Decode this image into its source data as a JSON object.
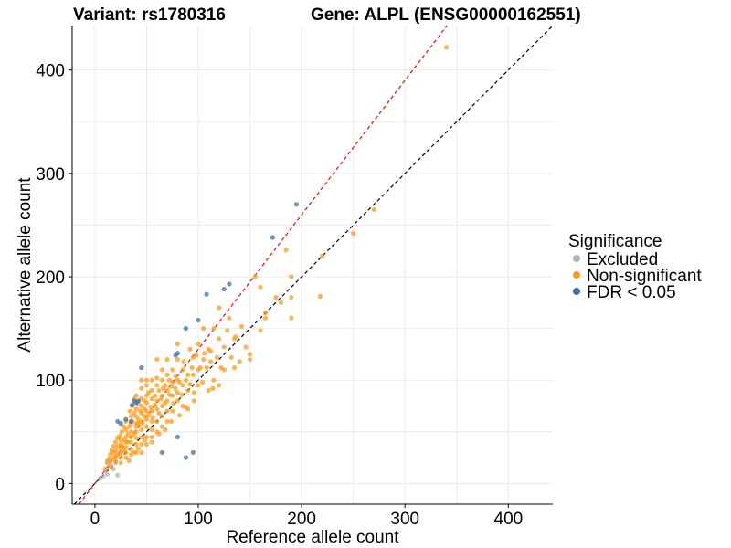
{
  "chart_data": {
    "type": "scatter",
    "title_left": "Variant: rs1780316",
    "title_right": "Gene: ALPL (ENSG00000162551)",
    "xlabel": "Reference allele count",
    "ylabel": "Alternative allele count",
    "xlim": [
      -22,
      443
    ],
    "ylim": [
      -20,
      443
    ],
    "x_ticks": [
      0,
      100,
      200,
      300,
      400
    ],
    "y_ticks": [
      0,
      100,
      200,
      300,
      400
    ],
    "grid": true,
    "legend": {
      "title": "Significance",
      "position": "right",
      "entries": [
        {
          "key": "excluded",
          "label": "Excluded",
          "color": "#b3b3b3"
        },
        {
          "key": "nonsig",
          "label": "Non-significant",
          "color": "#ff9a14"
        },
        {
          "key": "fdr",
          "label": "FDR < 0.05",
          "color": "#3d6fa8"
        }
      ]
    },
    "reference_lines": [
      {
        "name": "identity",
        "slope": 1.0,
        "intercept": 0,
        "color": "#000000",
        "style": "dashed"
      },
      {
        "name": "fitted",
        "slope": 1.3,
        "intercept": 0,
        "color": "#ff0000",
        "style": "dashed"
      }
    ],
    "series": [
      {
        "name": "Excluded",
        "points": [
          [
            5,
            5
          ],
          [
            8,
            7
          ],
          [
            10,
            12
          ],
          [
            12,
            9
          ],
          [
            15,
            18
          ],
          [
            18,
            14
          ],
          [
            20,
            20
          ],
          [
            22,
            8
          ],
          [
            12,
            22
          ],
          [
            25,
            28
          ]
        ]
      },
      {
        "name": "Non-significant",
        "points": [
          [
            340,
            422
          ],
          [
            270,
            265
          ],
          [
            250,
            242
          ],
          [
            220,
            220
          ],
          [
            218,
            181
          ],
          [
            185,
            226
          ],
          [
            190,
            160
          ],
          [
            190,
            180
          ],
          [
            190,
            200
          ],
          [
            175,
            180
          ],
          [
            165,
            165
          ],
          [
            165,
            160
          ],
          [
            155,
            200
          ],
          [
            160,
            148
          ],
          [
            150,
            120
          ],
          [
            150,
            125
          ],
          [
            140,
            118
          ],
          [
            130,
            160
          ],
          [
            135,
            140
          ],
          [
            125,
            132
          ],
          [
            120,
            140
          ],
          [
            120,
            170
          ],
          [
            125,
            110
          ],
          [
            110,
            130
          ],
          [
            112,
            118
          ],
          [
            115,
            100
          ],
          [
            105,
            120
          ],
          [
            100,
            110
          ],
          [
            100,
            95
          ],
          [
            100,
            135
          ],
          [
            95,
            122
          ],
          [
            95,
            105
          ],
          [
            92,
            130
          ],
          [
            90,
            105
          ],
          [
            90,
            90
          ],
          [
            90,
            72
          ],
          [
            85,
            110
          ],
          [
            85,
            95
          ],
          [
            85,
            75
          ],
          [
            80,
            120
          ],
          [
            80,
            100
          ],
          [
            80,
            88
          ],
          [
            80,
            80
          ],
          [
            78,
            92
          ],
          [
            75,
            110
          ],
          [
            75,
            98
          ],
          [
            75,
            85
          ],
          [
            75,
            70
          ],
          [
            72,
            100
          ],
          [
            70,
            105
          ],
          [
            70,
            90
          ],
          [
            70,
            80
          ],
          [
            70,
            70
          ],
          [
            70,
            60
          ],
          [
            68,
            95
          ],
          [
            65,
            110
          ],
          [
            65,
            100
          ],
          [
            65,
            85
          ],
          [
            65,
            75
          ],
          [
            65,
            65
          ],
          [
            65,
            55
          ],
          [
            62,
            90
          ],
          [
            60,
            102
          ],
          [
            60,
            95
          ],
          [
            60,
            80
          ],
          [
            60,
            72
          ],
          [
            60,
            60
          ],
          [
            60,
            50
          ],
          [
            58,
            85
          ],
          [
            55,
            100
          ],
          [
            55,
            90
          ],
          [
            55,
            82
          ],
          [
            55,
            70
          ],
          [
            55,
            60
          ],
          [
            55,
            52
          ],
          [
            55,
            45
          ],
          [
            52,
            88
          ],
          [
            50,
            95
          ],
          [
            50,
            85
          ],
          [
            50,
            78
          ],
          [
            50,
            70
          ],
          [
            50,
            62
          ],
          [
            50,
            55
          ],
          [
            50,
            45
          ],
          [
            50,
            38
          ],
          [
            48,
            80
          ],
          [
            48,
            65
          ],
          [
            45,
            92
          ],
          [
            45,
            82
          ],
          [
            45,
            75
          ],
          [
            45,
            68
          ],
          [
            45,
            60
          ],
          [
            45,
            52
          ],
          [
            45,
            45
          ],
          [
            45,
            38
          ],
          [
            45,
            30
          ],
          [
            42,
            78
          ],
          [
            42,
            58
          ],
          [
            40,
            85
          ],
          [
            40,
            72
          ],
          [
            40,
            65
          ],
          [
            40,
            58
          ],
          [
            40,
            50
          ],
          [
            40,
            44
          ],
          [
            40,
            38
          ],
          [
            40,
            30
          ],
          [
            38,
            68
          ],
          [
            38,
            48
          ],
          [
            36,
            75
          ],
          [
            35,
            65
          ],
          [
            35,
            58
          ],
          [
            35,
            50
          ],
          [
            35,
            45
          ],
          [
            35,
            40
          ],
          [
            35,
            33
          ],
          [
            35,
            28
          ],
          [
            33,
            55
          ],
          [
            32,
            48
          ],
          [
            30,
            60
          ],
          [
            30,
            52
          ],
          [
            30,
            45
          ],
          [
            30,
            40
          ],
          [
            30,
            35
          ],
          [
            30,
            30
          ],
          [
            30,
            25
          ],
          [
            28,
            42
          ],
          [
            28,
            32
          ],
          [
            26,
            50
          ],
          [
            25,
            42
          ],
          [
            25,
            38
          ],
          [
            25,
            34
          ],
          [
            25,
            30
          ],
          [
            25,
            25
          ],
          [
            25,
            20
          ],
          [
            22,
            36
          ],
          [
            22,
            28
          ],
          [
            20,
            40
          ],
          [
            20,
            32
          ],
          [
            20,
            26
          ],
          [
            20,
            22
          ],
          [
            18,
            30
          ],
          [
            18,
            24
          ],
          [
            15,
            28
          ],
          [
            15,
            22
          ],
          [
            15,
            16
          ],
          [
            12,
            20
          ],
          [
            10,
            14
          ],
          [
            40,
            55
          ],
          [
            42,
            62
          ],
          [
            44,
            70
          ],
          [
            46,
            58
          ],
          [
            48,
            72
          ],
          [
            52,
            66
          ],
          [
            54,
            74
          ],
          [
            56,
            64
          ],
          [
            58,
            76
          ],
          [
            62,
            68
          ],
          [
            64,
            82
          ],
          [
            66,
            92
          ],
          [
            68,
            78
          ],
          [
            72,
            86
          ],
          [
            74,
            94
          ],
          [
            76,
            78
          ],
          [
            78,
            104
          ],
          [
            82,
            98
          ],
          [
            84,
            86
          ],
          [
            86,
            118
          ],
          [
            88,
            100
          ],
          [
            92,
            96
          ],
          [
            94,
            112
          ],
          [
            96,
            88
          ],
          [
            98,
            124
          ],
          [
            102,
            112
          ],
          [
            104,
            98
          ],
          [
            106,
            126
          ],
          [
            108,
            112
          ],
          [
            112,
            128
          ],
          [
            114,
            92
          ],
          [
            118,
            122
          ],
          [
            122,
            112
          ],
          [
            128,
            148
          ],
          [
            132,
            122
          ],
          [
            136,
            142
          ],
          [
            142,
            152
          ],
          [
            146,
            132
          ],
          [
            160,
            190
          ],
          [
            180,
            175
          ],
          [
            105,
            150
          ],
          [
            115,
            150
          ],
          [
            70,
            120
          ],
          [
            80,
            135
          ],
          [
            60,
            120
          ],
          [
            50,
            100
          ],
          [
            45,
            100
          ],
          [
            38,
            82
          ],
          [
            36,
            60
          ],
          [
            34,
            70
          ],
          [
            32,
            40
          ],
          [
            28,
            55
          ],
          [
            26,
            36
          ],
          [
            24,
            46
          ],
          [
            22,
            44
          ],
          [
            18,
            36
          ],
          [
            16,
            32
          ],
          [
            14,
            24
          ],
          [
            33,
            22
          ],
          [
            38,
            30
          ],
          [
            42,
            34
          ],
          [
            48,
            42
          ],
          [
            55,
            40
          ],
          [
            62,
            48
          ],
          [
            68,
            52
          ],
          [
            74,
            60
          ],
          [
            82,
            66
          ],
          [
            88,
            74
          ],
          [
            96,
            80
          ],
          [
            110,
            90
          ],
          [
            120,
            95
          ],
          [
            135,
            112
          ]
        ]
      },
      {
        "name": "FDR < 0.05",
        "points": [
          [
            195,
            270
          ],
          [
            172,
            238
          ],
          [
            130,
            193
          ],
          [
            125,
            188
          ],
          [
            108,
            183
          ],
          [
            100,
            158
          ],
          [
            88,
            150
          ],
          [
            80,
            126
          ],
          [
            78,
            124
          ],
          [
            45,
            112
          ],
          [
            38,
            80
          ],
          [
            36,
            76
          ],
          [
            40,
            78
          ],
          [
            42,
            80
          ],
          [
            30,
            62
          ],
          [
            35,
            60
          ],
          [
            25,
            58
          ],
          [
            22,
            60
          ],
          [
            65,
            30
          ],
          [
            80,
            45
          ],
          [
            95,
            30
          ],
          [
            88,
            25
          ]
        ]
      }
    ]
  }
}
